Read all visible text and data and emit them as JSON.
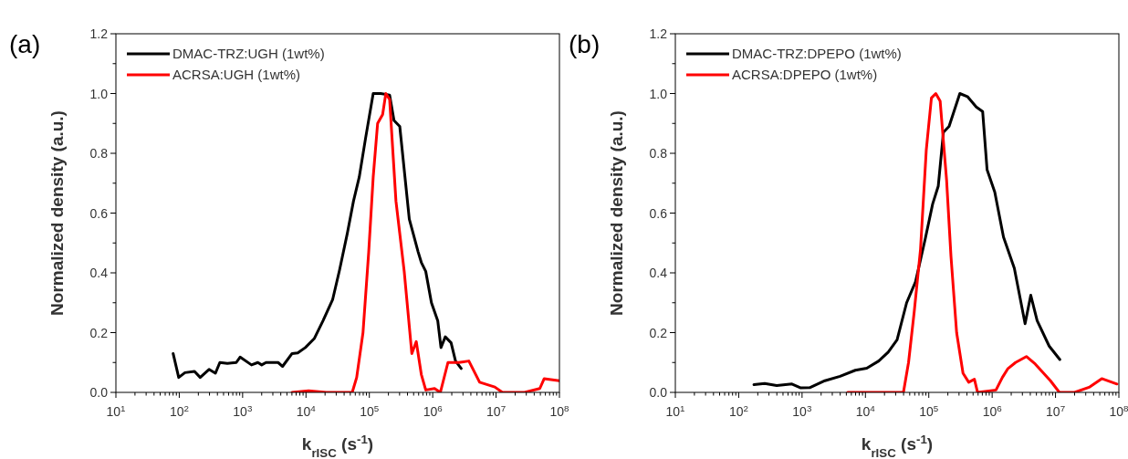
{
  "chart_data": [
    {
      "type": "line",
      "title": "(a)",
      "xlabel": "k$_{rISC}$ (s$^{-1}$)",
      "ylabel": "Normalized density (a.u.)",
      "log": "x",
      "grid": false,
      "legend": "top left",
      "line_style": "solid",
      "marker": "none",
      "xlim": [
        10,
        100000000
      ],
      "ylim": [
        0,
        1.2
      ],
      "xticks": [
        {
          "value": 10,
          "label": "10$^{1}$"
        },
        {
          "value": 100,
          "label": "10$^{2}$"
        },
        {
          "value": 1000,
          "label": "10$^{3}$"
        },
        {
          "value": 10000,
          "label": "10$^{4}$"
        },
        {
          "value": 100000,
          "label": "10$^{5}$"
        },
        {
          "value": 1000000,
          "label": "10$^{6}$"
        },
        {
          "value": 10000000,
          "label": "10$^{7}$"
        },
        {
          "value": 100000000,
          "label": "10$^{8}$"
        },
        {
          "value": 20,
          "label": null
        },
        {
          "value": 30,
          "label": null
        },
        {
          "value": 40,
          "label": null
        },
        {
          "value": 50,
          "label": null
        },
        {
          "value": 60,
          "label": null
        },
        {
          "value": 70,
          "label": null
        },
        {
          "value": 80,
          "label": null
        },
        {
          "value": 90,
          "label": null
        },
        {
          "value": 200,
          "label": null
        },
        {
          "value": 300,
          "label": null
        },
        {
          "value": 400,
          "label": null
        },
        {
          "value": 500,
          "label": null
        },
        {
          "value": 600,
          "label": null
        },
        {
          "value": 700,
          "label": null
        },
        {
          "value": 800,
          "label": null
        },
        {
          "value": 900,
          "label": null
        },
        {
          "value": 2000,
          "label": null
        },
        {
          "value": 3000,
          "label": null
        },
        {
          "value": 4000,
          "label": null
        },
        {
          "value": 5000,
          "label": null
        },
        {
          "value": 6000,
          "label": null
        },
        {
          "value": 7000,
          "label": null
        },
        {
          "value": 8000,
          "label": null
        },
        {
          "value": 9000,
          "label": null
        },
        {
          "value": 20000,
          "label": null
        },
        {
          "value": 30000,
          "label": null
        },
        {
          "value": 40000,
          "label": null
        },
        {
          "value": 50000,
          "label": null
        },
        {
          "value": 60000,
          "label": null
        },
        {
          "value": 70000,
          "label": null
        },
        {
          "value": 80000,
          "label": null
        },
        {
          "value": 90000,
          "label": null
        },
        {
          "value": 200000,
          "label": null
        },
        {
          "value": 300000,
          "label": null
        },
        {
          "value": 400000,
          "label": null
        },
        {
          "value": 500000,
          "label": null
        },
        {
          "value": 600000,
          "label": null
        },
        {
          "value": 700000,
          "label": null
        },
        {
          "value": 800000,
          "label": null
        },
        {
          "value": 900000,
          "label": null
        },
        {
          "value": 2000000,
          "label": null
        },
        {
          "value": 3000000,
          "label": null
        },
        {
          "value": 4000000,
          "label": null
        },
        {
          "value": 5000000,
          "label": null
        },
        {
          "value": 6000000,
          "label": null
        },
        {
          "value": 7000000,
          "label": null
        },
        {
          "value": 8000000,
          "label": null
        },
        {
          "value": 9000000,
          "label": null
        },
        {
          "value": 20000000,
          "label": null
        },
        {
          "value": 30000000,
          "label": null
        },
        {
          "value": 40000000,
          "label": null
        },
        {
          "value": 50000000,
          "label": null
        },
        {
          "value": 60000000,
          "label": null
        },
        {
          "value": 70000000,
          "label": null
        },
        {
          "value": 80000000,
          "label": null
        },
        {
          "value": 90000000,
          "label": null
        }
      ],
      "yticks": [
        {
          "value": 0,
          "label": "0.0"
        },
        0.2,
        0.4,
        0.6,
        0.8,
        {
          "value": 1,
          "label": "1.0"
        },
        1.2,
        {
          "value": 0.1,
          "label": null
        },
        {
          "value": 0.3,
          "label": null
        },
        {
          "value": 0.5,
          "label": null
        },
        {
          "value": 0.7,
          "label": null
        },
        {
          "value": 0.9,
          "label": null
        },
        {
          "value": 1.1,
          "label": null
        }
      ],
      "series": [
        {
          "name": "DMAC-TRZ:UGH (1wt%)",
          "color": "#000000",
          "x": [
            80,
            98,
            123,
            174,
            214,
            295,
            372,
            437,
            575,
            794,
            912,
            1380,
            1740,
            2000,
            2340,
            3630,
            4270,
            6030,
            7410,
            9770,
            13500,
            18600,
            26300,
            33900,
            44700,
            56200,
            69200,
            87100,
            115000,
            151000,
            209000,
            245000,
            302000,
            427000,
            589000,
            661000,
            776000,
            955000,
            1200000,
            1350000,
            1580000,
            1950000,
            2290000,
            2820000
          ],
          "values": [
            0.13,
            0.05,
            0.066,
            0.07,
            0.05,
            0.077,
            0.064,
            0.1,
            0.097,
            0.1,
            0.118,
            0.092,
            0.1,
            0.092,
            0.1,
            0.1,
            0.087,
            0.13,
            0.132,
            0.15,
            0.18,
            0.24,
            0.31,
            0.41,
            0.53,
            0.64,
            0.72,
            0.85,
            1.0,
            1.0,
            0.995,
            0.91,
            0.89,
            0.58,
            0.47,
            0.435,
            0.405,
            0.3,
            0.24,
            0.15,
            0.186,
            0.166,
            0.105,
            0.08
          ]
        },
        {
          "name": "ACRSA:UGH (1wt%)",
          "color": "#ff0000",
          "x": [
            6030,
            11000,
            20900,
            32400,
            53700,
            63100,
            79400,
            97700,
            115000,
            135000,
            162000,
            182000,
            209000,
            263000,
            355000,
            468000,
            550000,
            661000,
            776000,
            1070000,
            1320000,
            1740000,
            2570000,
            3720000,
            5500000,
            9550000,
            12600000,
            28200000,
            49000000,
            57500000,
            100000000
          ],
          "values": [
            0,
            0.005,
            0,
            0,
            0,
            0.05,
            0.2,
            0.47,
            0.72,
            0.9,
            0.93,
            1.0,
            0.98,
            0.64,
            0.405,
            0.13,
            0.17,
            0.06,
            0.008,
            0.013,
            0,
            0.1,
            0.1,
            0.105,
            0.034,
            0.018,
            0,
            0,
            0.013,
            0.046,
            0.039
          ]
        }
      ]
    },
    {
      "type": "line",
      "title": "(b)",
      "xlabel": "k$_{rISC}$ (s$^{-1}$)",
      "ylabel": "Normalized density (a.u.)",
      "log": "x",
      "grid": false,
      "legend": "top left",
      "line_style": "solid",
      "marker": "none",
      "xlim": [
        10,
        100000000
      ],
      "ylim": [
        0,
        1.2
      ],
      "xticks": [
        {
          "value": 10,
          "label": "10$^{1}$"
        },
        {
          "value": 100,
          "label": "10$^{2}$"
        },
        {
          "value": 1000,
          "label": "10$^{3}$"
        },
        {
          "value": 10000,
          "label": "10$^{4}$"
        },
        {
          "value": 100000,
          "label": "10$^{5}$"
        },
        {
          "value": 1000000,
          "label": "10$^{6}$"
        },
        {
          "value": 10000000,
          "label": "10$^{7}$"
        },
        {
          "value": 100000000,
          "label": "10$^{8}$"
        },
        {
          "value": 20,
          "label": null
        },
        {
          "value": 30,
          "label": null
        },
        {
          "value": 40,
          "label": null
        },
        {
          "value": 50,
          "label": null
        },
        {
          "value": 60,
          "label": null
        },
        {
          "value": 70,
          "label": null
        },
        {
          "value": 80,
          "label": null
        },
        {
          "value": 90,
          "label": null
        },
        {
          "value": 200,
          "label": null
        },
        {
          "value": 300,
          "label": null
        },
        {
          "value": 400,
          "label": null
        },
        {
          "value": 500,
          "label": null
        },
        {
          "value": 600,
          "label": null
        },
        {
          "value": 700,
          "label": null
        },
        {
          "value": 800,
          "label": null
        },
        {
          "value": 900,
          "label": null
        },
        {
          "value": 2000,
          "label": null
        },
        {
          "value": 3000,
          "label": null
        },
        {
          "value": 4000,
          "label": null
        },
        {
          "value": 5000,
          "label": null
        },
        {
          "value": 6000,
          "label": null
        },
        {
          "value": 7000,
          "label": null
        },
        {
          "value": 8000,
          "label": null
        },
        {
          "value": 9000,
          "label": null
        },
        {
          "value": 20000,
          "label": null
        },
        {
          "value": 30000,
          "label": null
        },
        {
          "value": 40000,
          "label": null
        },
        {
          "value": 50000,
          "label": null
        },
        {
          "value": 60000,
          "label": null
        },
        {
          "value": 70000,
          "label": null
        },
        {
          "value": 80000,
          "label": null
        },
        {
          "value": 90000,
          "label": null
        },
        {
          "value": 200000,
          "label": null
        },
        {
          "value": 300000,
          "label": null
        },
        {
          "value": 400000,
          "label": null
        },
        {
          "value": 500000,
          "label": null
        },
        {
          "value": 600000,
          "label": null
        },
        {
          "value": 700000,
          "label": null
        },
        {
          "value": 800000,
          "label": null
        },
        {
          "value": 900000,
          "label": null
        },
        {
          "value": 2000000,
          "label": null
        },
        {
          "value": 3000000,
          "label": null
        },
        {
          "value": 4000000,
          "label": null
        },
        {
          "value": 5000000,
          "label": null
        },
        {
          "value": 6000000,
          "label": null
        },
        {
          "value": 7000000,
          "label": null
        },
        {
          "value": 8000000,
          "label": null
        },
        {
          "value": 9000000,
          "label": null
        },
        {
          "value": 20000000,
          "label": null
        },
        {
          "value": 30000000,
          "label": null
        },
        {
          "value": 40000000,
          "label": null
        },
        {
          "value": 50000000,
          "label": null
        },
        {
          "value": 60000000,
          "label": null
        },
        {
          "value": 70000000,
          "label": null
        },
        {
          "value": 80000000,
          "label": null
        },
        {
          "value": 90000000,
          "label": null
        }
      ],
      "yticks": [
        {
          "value": 0,
          "label": "0.0"
        },
        0.2,
        0.4,
        0.6,
        0.8,
        {
          "value": 1,
          "label": "1.0"
        },
        1.2,
        {
          "value": 0.1,
          "label": null
        },
        {
          "value": 0.3,
          "label": null
        },
        {
          "value": 0.5,
          "label": null
        },
        {
          "value": 0.7,
          "label": null
        },
        {
          "value": 0.9,
          "label": null
        },
        {
          "value": 1.1,
          "label": null
        }
      ],
      "series": [
        {
          "name": "DMAC-TRZ:DPEPO (1wt%)",
          "color": "#000000",
          "x": [
            174,
            257,
            398,
            692,
            955,
            1320,
            2290,
            3980,
            6920,
            10500,
            16200,
            22900,
            31600,
            44700,
            61700,
            87100,
            115000,
            141000,
            170000,
            209000,
            309000,
            407000,
            562000,
            708000,
            832000,
            1100000,
            1510000,
            2240000,
            3310000,
            4070000,
            5130000,
            7940000,
            11700000
          ],
          "values": [
            0.026,
            0.03,
            0.023,
            0.028,
            0.015,
            0.016,
            0.039,
            0.054,
            0.074,
            0.081,
            0.105,
            0.135,
            0.176,
            0.3,
            0.37,
            0.51,
            0.63,
            0.69,
            0.87,
            0.89,
            1.0,
            0.99,
            0.955,
            0.94,
            0.745,
            0.67,
            0.52,
            0.415,
            0.23,
            0.325,
            0.24,
            0.155,
            0.11
          ]
        },
        {
          "name": "ACRSA:DPEPO (1wt%)",
          "color": "#ff0000",
          "x": [
            5250,
            12600,
            39800,
            47900,
            58900,
            74100,
            91200,
            110000,
            129000,
            151000,
            191000,
            224000,
            275000,
            347000,
            427000,
            525000,
            589000,
            1150000,
            1450000,
            1780000,
            2340000,
            3470000,
            4790000,
            8320000,
            11500000,
            20000000,
            34700000,
            53700000,
            93300000
          ],
          "values": [
            0,
            0,
            0,
            0.1,
            0.27,
            0.48,
            0.81,
            0.985,
            1.0,
            0.975,
            0.71,
            0.455,
            0.2,
            0.064,
            0.034,
            0.044,
            0,
            0.008,
            0.05,
            0.08,
            0.1,
            0.12,
            0.095,
            0.039,
            0,
            0,
            0.018,
            0.046,
            0.028
          ]
        }
      ]
    }
  ]
}
